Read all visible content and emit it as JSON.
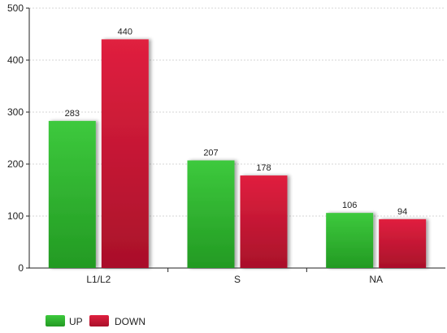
{
  "chart_data": {
    "type": "bar",
    "categories": [
      "L1/L2",
      "S",
      "NA"
    ],
    "series": [
      {
        "name": "UP",
        "values": [
          283,
          207,
          106
        ],
        "color": "#3dc93d",
        "color_dark": "#239a23"
      },
      {
        "name": "DOWN",
        "values": [
          440,
          178,
          94
        ],
        "color": "#e0203f",
        "color_dark": "#a9102a"
      }
    ],
    "ylim": [
      0,
      500
    ],
    "yticks": [
      0,
      100,
      200,
      300,
      400,
      500
    ],
    "grid": true,
    "legend_position": "bottom-left"
  }
}
